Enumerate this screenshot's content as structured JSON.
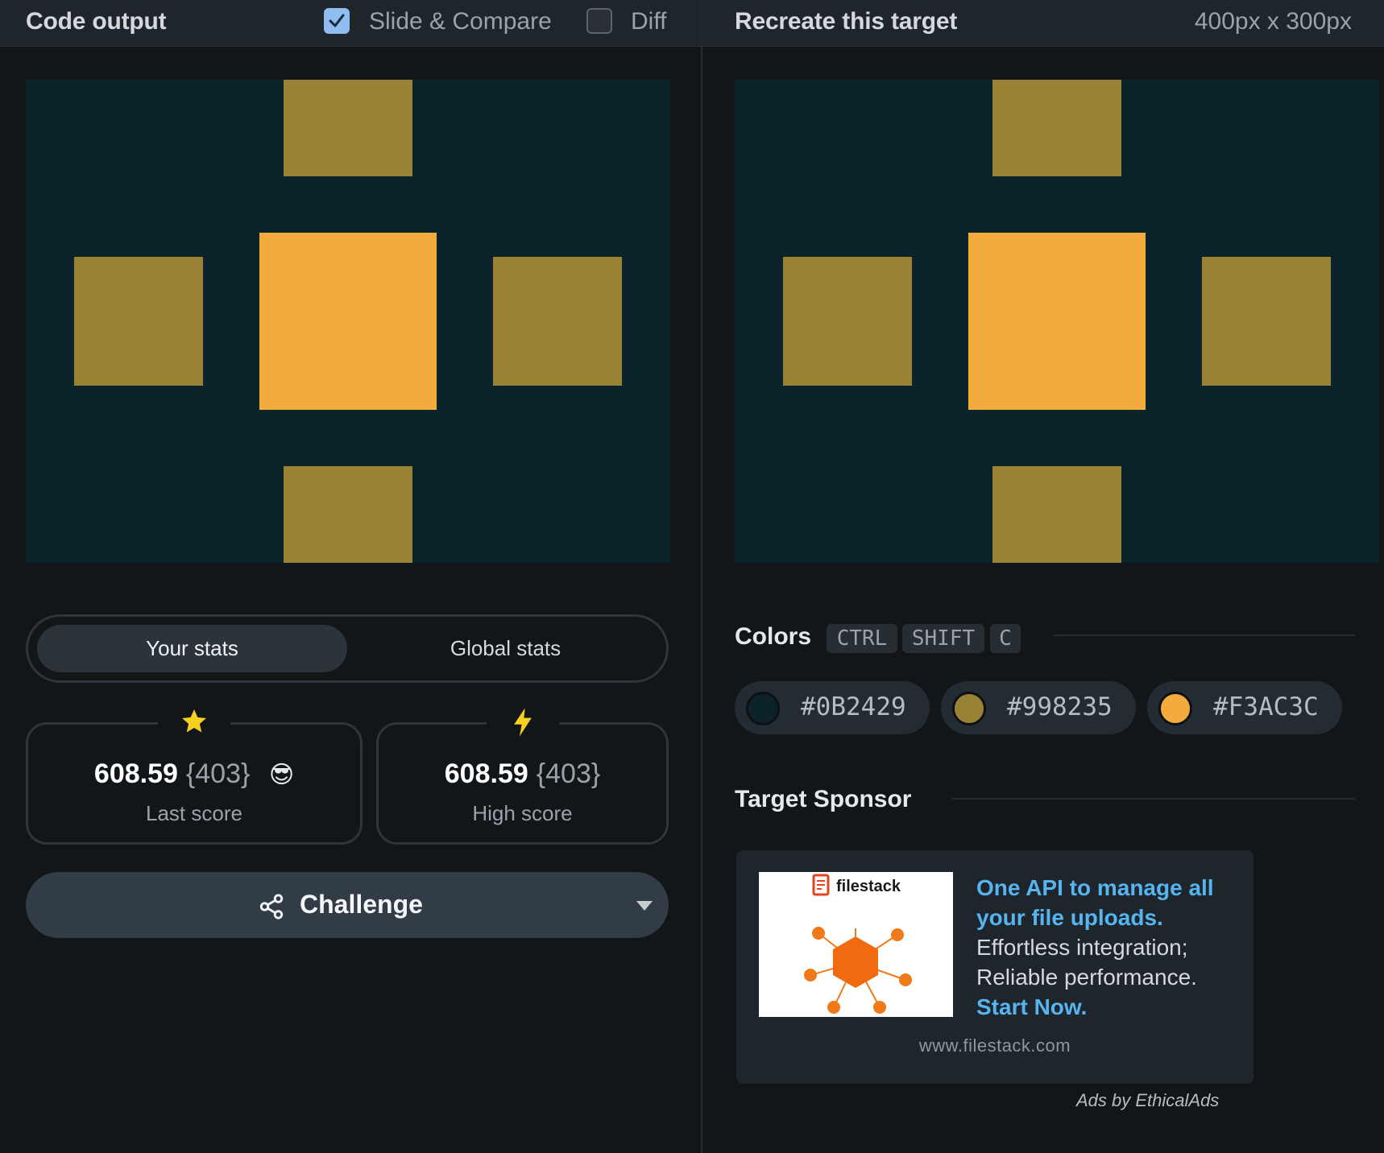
{
  "left_header": {
    "title": "Code output",
    "slide_compare_label": "Slide & Compare",
    "slide_compare_checked": true,
    "diff_label": "Diff",
    "diff_checked": false
  },
  "right_header": {
    "title": "Recreate this target",
    "size_label": "400px x 300px"
  },
  "stats": {
    "tabs": [
      "Your stats",
      "Global stats"
    ],
    "active_tab": "Your stats",
    "last": {
      "value": "608.59",
      "sub": "{403}",
      "emoji": "😎",
      "label": "Last score",
      "badge": "star-icon"
    },
    "high": {
      "value": "608.59",
      "sub": "{403}",
      "label": "High score",
      "badge": "lightning-icon"
    }
  },
  "challenge": {
    "label": "Challenge"
  },
  "colors_section": {
    "title": "Colors",
    "shortcut": [
      "CTRL",
      "SHIFT",
      "C"
    ],
    "swatches": [
      {
        "hex": "#0B2429",
        "label": "#0B2429"
      },
      {
        "hex": "#998235",
        "label": "#998235"
      },
      {
        "hex": "#F3AC3C",
        "label": "#F3AC3C"
      }
    ]
  },
  "sponsor": {
    "title": "Target Sponsor",
    "brand": "filestack",
    "headline": "One API to manage all your file uploads.",
    "body": "Effortless integration; Reliable performance.",
    "cta": "Start Now.",
    "url": "www.filestack.com",
    "credit": "Ads by EthicalAds"
  },
  "palette": {
    "background": "#0B2429",
    "accent": "#998235",
    "highlight": "#F3AC3C"
  }
}
